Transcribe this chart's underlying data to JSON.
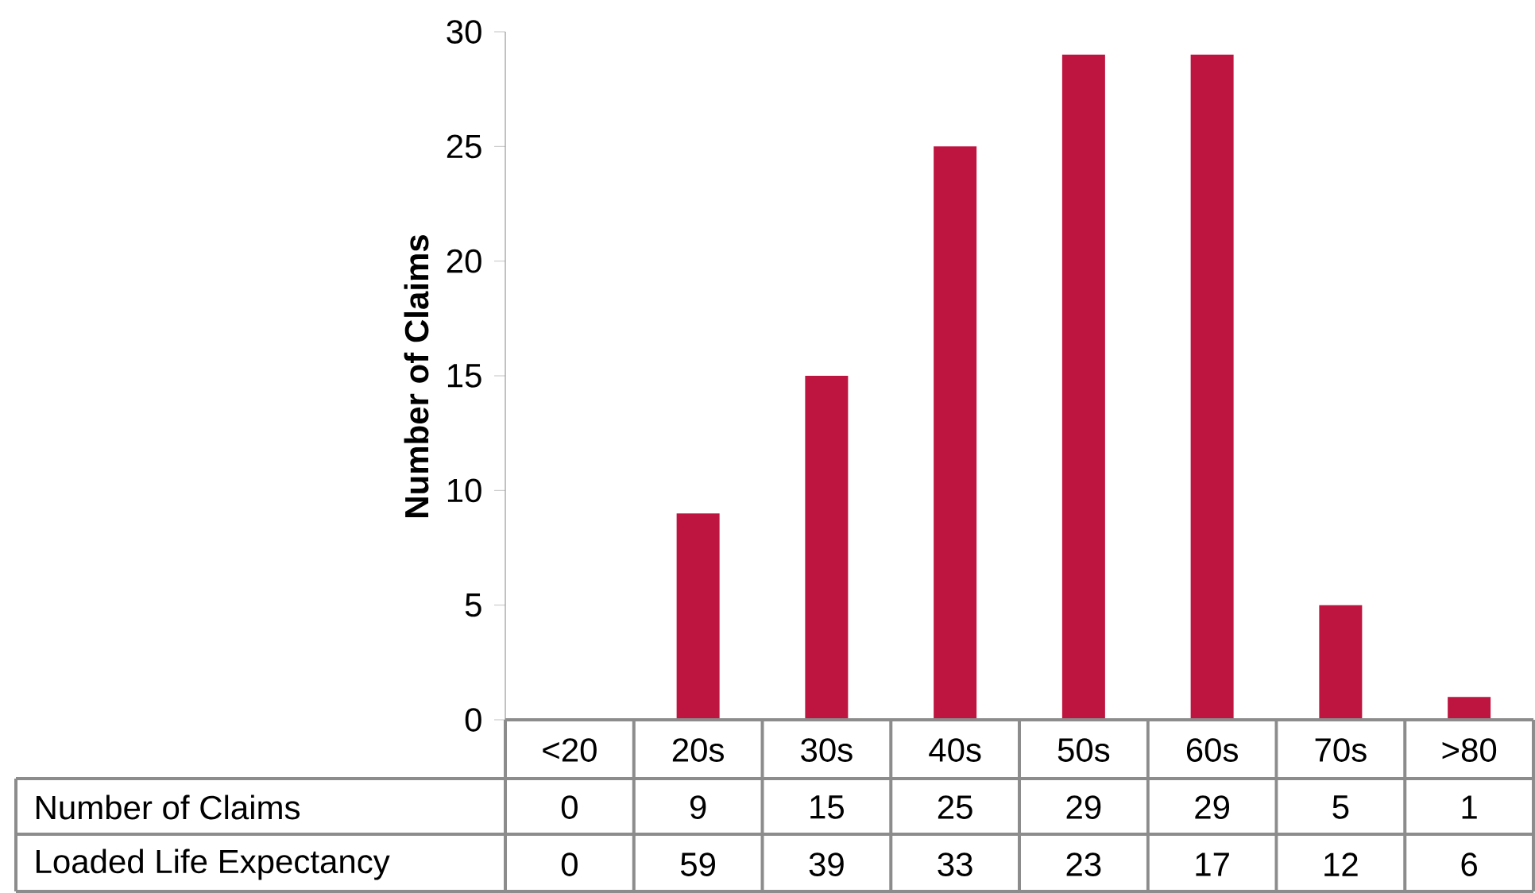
{
  "chart_data": {
    "type": "bar",
    "ylabel": "Number of Claims",
    "categories": [
      "<20",
      "20s",
      "30s",
      "40s",
      "50s",
      "60s",
      "70s",
      ">80"
    ],
    "series": [
      {
        "name": "Number of Claims",
        "color": "#be1540",
        "values": [
          0,
          9,
          15,
          25,
          29,
          29,
          5,
          1
        ]
      }
    ],
    "ylim": [
      0,
      30
    ],
    "yticks": [
      0,
      5,
      10,
      15,
      20,
      25,
      30
    ],
    "grid": false,
    "legend": false,
    "data_labels": true,
    "annotations": [
      "Loaded Life Expectancy",
      "0",
      "59",
      "39",
      "33",
      "23",
      "17",
      "12",
      "6"
    ]
  }
}
